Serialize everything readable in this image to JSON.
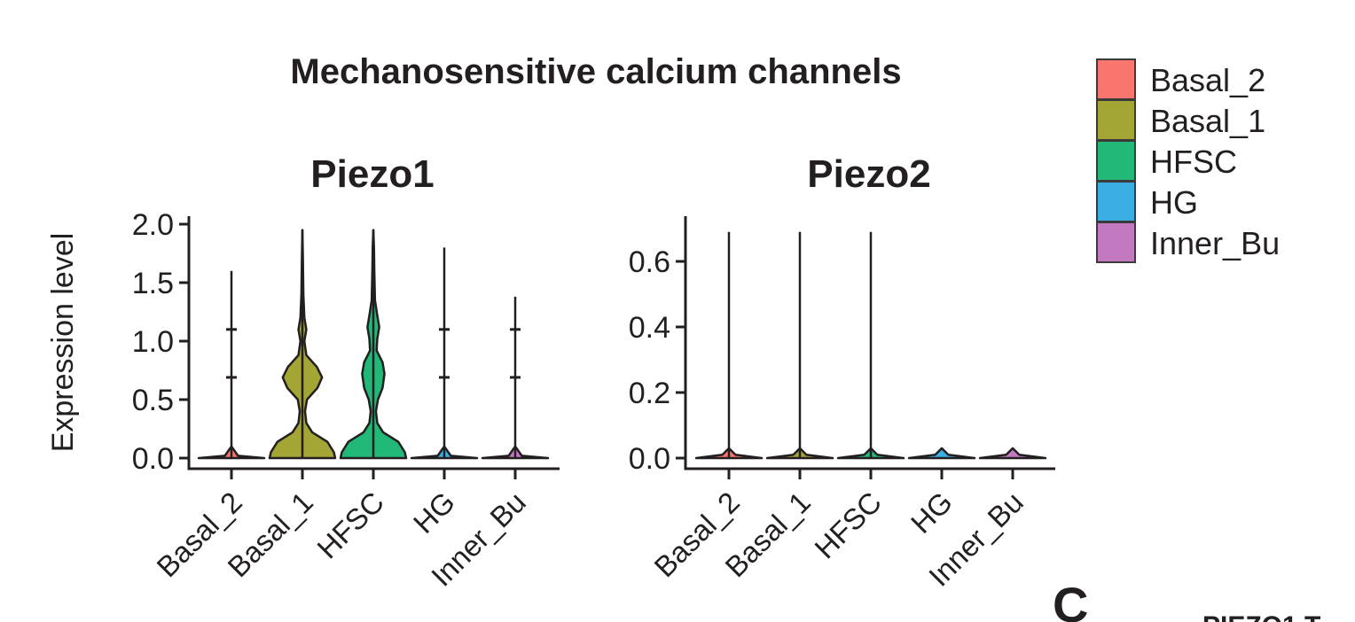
{
  "figure": {
    "title": "Mechanosensitive calcium channels",
    "panel_letter": "C",
    "cut_off_text": "PIEZO1 T"
  },
  "legend": {
    "entries": [
      {
        "label": "Basal_2",
        "color": "#f8766d"
      },
      {
        "label": "Basal_1",
        "color": "#a3a535"
      },
      {
        "label": "HFSC",
        "color": "#22b878"
      },
      {
        "label": "HG",
        "color": "#3aaee3"
      },
      {
        "label": "Inner_Bu",
        "color": "#c279c0"
      }
    ]
  },
  "chart_data": [
    {
      "type": "violin",
      "title": "Piezo1",
      "ylabel": "Expression level",
      "xlabel": "",
      "categories": [
        "Basal_2",
        "Basal_1",
        "HFSC",
        "HG",
        "Inner_Bu"
      ],
      "ylim": [
        0,
        2.0
      ],
      "yticks": [
        "0.0",
        "0.5",
        "1.0",
        "1.5",
        "2.0"
      ],
      "series": [
        {
          "category": "Basal_2",
          "max": 1.6,
          "marks": [
            0.69,
            1.1
          ],
          "density": [
            [
              0.0,
              0.5
            ],
            [
              0.02,
              0.1
            ],
            [
              0.1,
              0.0
            ]
          ]
        },
        {
          "category": "Basal_1",
          "max": 1.95,
          "marks": [],
          "density": [
            [
              0.0,
              0.5
            ],
            [
              0.05,
              0.48
            ],
            [
              0.14,
              0.38
            ],
            [
              0.22,
              0.15
            ],
            [
              0.3,
              0.06
            ],
            [
              0.4,
              0.04
            ],
            [
              0.5,
              0.07
            ],
            [
              0.6,
              0.23
            ],
            [
              0.69,
              0.3
            ],
            [
              0.78,
              0.22
            ],
            [
              0.88,
              0.06
            ],
            [
              1.0,
              0.03
            ],
            [
              1.1,
              0.06
            ],
            [
              1.2,
              0.03
            ],
            [
              1.4,
              0.015
            ],
            [
              1.7,
              0.008
            ],
            [
              1.95,
              0.0
            ]
          ]
        },
        {
          "category": "HFSC",
          "max": 1.95,
          "marks": [],
          "density": [
            [
              0.0,
              0.5
            ],
            [
              0.05,
              0.48
            ],
            [
              0.14,
              0.38
            ],
            [
              0.22,
              0.15
            ],
            [
              0.3,
              0.06
            ],
            [
              0.4,
              0.04
            ],
            [
              0.5,
              0.07
            ],
            [
              0.6,
              0.14
            ],
            [
              0.72,
              0.17
            ],
            [
              0.82,
              0.14
            ],
            [
              0.92,
              0.05
            ],
            [
              1.02,
              0.06
            ],
            [
              1.12,
              0.09
            ],
            [
              1.22,
              0.06
            ],
            [
              1.35,
              0.025
            ],
            [
              1.6,
              0.015
            ],
            [
              1.8,
              0.01
            ],
            [
              1.95,
              0.0
            ]
          ]
        },
        {
          "category": "HG",
          "max": 1.8,
          "marks": [
            0.69,
            1.1
          ],
          "density": [
            [
              0.0,
              0.5
            ],
            [
              0.02,
              0.1
            ],
            [
              0.1,
              0.0
            ]
          ]
        },
        {
          "category": "Inner_Bu",
          "max": 1.38,
          "marks": [
            0.69,
            1.1
          ],
          "density": [
            [
              0.0,
              0.5
            ],
            [
              0.02,
              0.1
            ],
            [
              0.1,
              0.0
            ]
          ]
        }
      ]
    },
    {
      "type": "violin",
      "title": "Piezo2",
      "ylabel": "",
      "xlabel": "",
      "categories": [
        "Basal_2",
        "Basal_1",
        "HFSC",
        "HG",
        "Inner_Bu"
      ],
      "ylim": [
        0,
        0.72
      ],
      "yticks": [
        "0.0",
        "0.2",
        "0.4",
        "0.6"
      ],
      "series": [
        {
          "category": "Basal_2",
          "max": 0.69,
          "marks": [],
          "density": [
            [
              0.0,
              0.5
            ],
            [
              0.01,
              0.1
            ],
            [
              0.03,
              0.0
            ]
          ]
        },
        {
          "category": "Basal_1",
          "max": 0.69,
          "marks": [],
          "density": [
            [
              0.0,
              0.5
            ],
            [
              0.01,
              0.1
            ],
            [
              0.03,
              0.0
            ]
          ]
        },
        {
          "category": "HFSC",
          "max": 0.69,
          "marks": [],
          "density": [
            [
              0.0,
              0.5
            ],
            [
              0.01,
              0.1
            ],
            [
              0.03,
              0.0
            ]
          ]
        },
        {
          "category": "HG",
          "max": 0.0,
          "marks": [],
          "density": [
            [
              0.0,
              0.5
            ],
            [
              0.01,
              0.1
            ],
            [
              0.03,
              0.0
            ]
          ]
        },
        {
          "category": "Inner_Bu",
          "max": 0.0,
          "marks": [],
          "density": [
            [
              0.0,
              0.5
            ],
            [
              0.01,
              0.1
            ],
            [
              0.03,
              0.0
            ]
          ]
        }
      ]
    }
  ]
}
